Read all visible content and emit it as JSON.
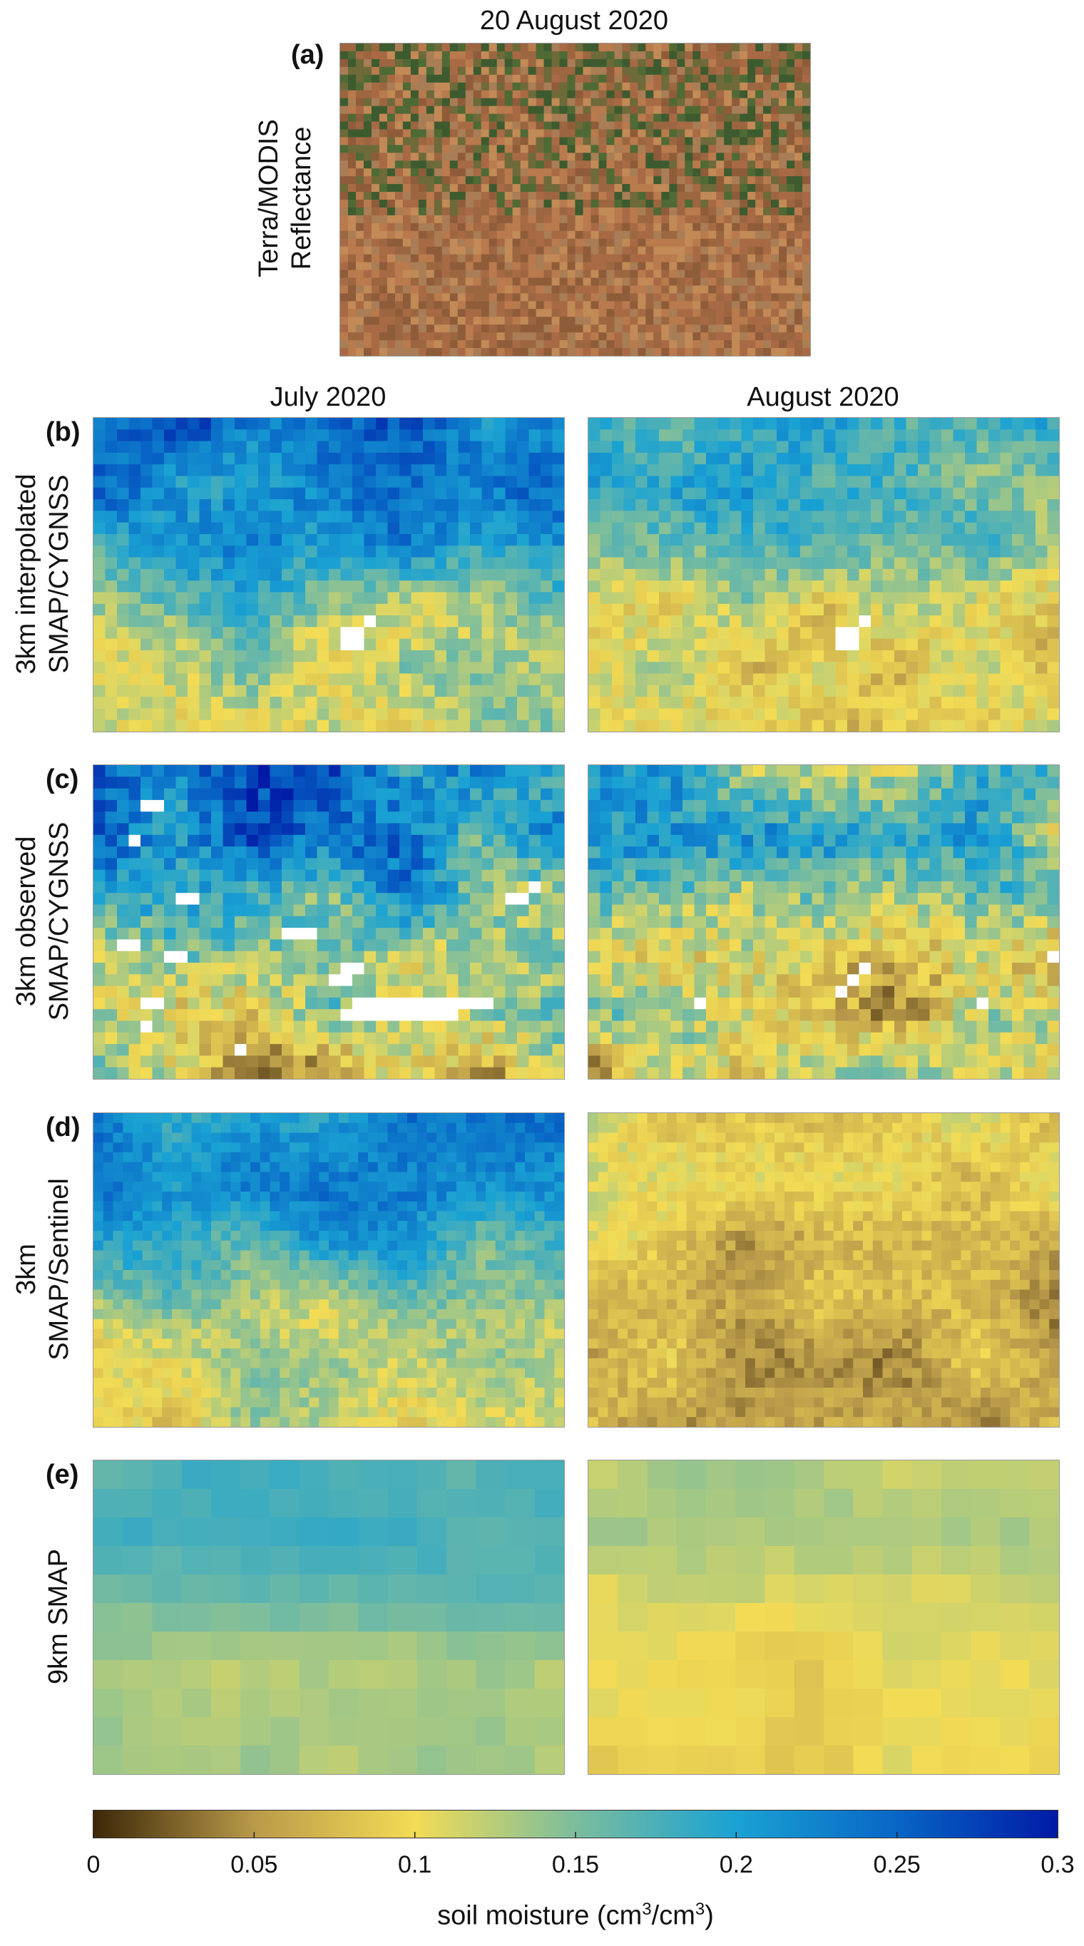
{
  "figure": {
    "header_title": "20 August 2020",
    "column_titles": [
      "July 2020",
      "August 2020"
    ]
  },
  "panel_a": {
    "letter": "(a)",
    "label_lines": [
      "Terra/MODIS",
      "Reflectance"
    ],
    "image_palette": [
      "#a86a45",
      "#b97a4d",
      "#c28a56",
      "#9c6640",
      "#6e6a3a",
      "#4f6a35",
      "#3d5b2f",
      "#a97d55",
      "#8f5c3a"
    ]
  },
  "rows": [
    {
      "letter": "(b)",
      "label_lines": [
        "3km interpolated",
        "SMAP/CYGNSS"
      ]
    },
    {
      "letter": "(c)",
      "label_lines": [
        "3km observed",
        "SMAP/CYGNSS"
      ]
    },
    {
      "letter": "(d)",
      "label_lines": [
        "3km",
        "SMAP/Sentinel"
      ]
    },
    {
      "letter": "(e)",
      "label_lines": [
        "9km SMAP"
      ]
    }
  ],
  "chart_data": {
    "type": "heatmap",
    "variable": "soil moisture",
    "colorbar": {
      "label": "soil moisture (cm",
      "label_sup1": "3",
      "label_mid": "/cm",
      "label_sup2": "3",
      "label_end": ")",
      "range": [
        0,
        0.3
      ],
      "ticks": [
        0,
        0.05,
        0.1,
        0.15,
        0.2,
        0.25,
        0.3
      ],
      "tick_labels": [
        "0",
        "0.05",
        "0.1",
        "0.15",
        "0.2",
        "0.25",
        "0.3"
      ],
      "stops": [
        {
          "v": 0.0,
          "c": "#3d2708"
        },
        {
          "v": 0.05,
          "c": "#b99a4a"
        },
        {
          "v": 0.1,
          "c": "#f3dc55"
        },
        {
          "v": 0.15,
          "c": "#7cbd9d"
        },
        {
          "v": 0.2,
          "c": "#1aa2d3"
        },
        {
          "v": 0.25,
          "c": "#0866c6"
        },
        {
          "v": 0.3,
          "c": "#001aa6"
        }
      ]
    },
    "panels": [
      {
        "row": "b",
        "month": "July 2020",
        "grid": [
          40,
          27
        ],
        "mean_top": 0.23,
        "mean_bottom": 0.125,
        "noise": 0.05,
        "missing_cells": [
          [
            21,
            18
          ],
          [
            22,
            18
          ],
          [
            21,
            19
          ],
          [
            22,
            19
          ],
          [
            23,
            17
          ]
        ]
      },
      {
        "row": "b",
        "month": "August 2020",
        "grid": [
          40,
          27
        ],
        "mean_top": 0.17,
        "mean_bottom": 0.1,
        "noise": 0.05,
        "missing_cells": [
          [
            21,
            18
          ],
          [
            22,
            18
          ],
          [
            21,
            19
          ],
          [
            22,
            19
          ],
          [
            23,
            17
          ]
        ]
      },
      {
        "row": "c",
        "month": "July 2020",
        "grid": [
          40,
          27
        ],
        "mean_top": 0.22,
        "mean_bottom": 0.1,
        "noise": 0.07,
        "missing_cells": [
          [
            4,
            3
          ],
          [
            5,
            3
          ],
          [
            3,
            6
          ],
          [
            7,
            11
          ],
          [
            8,
            11
          ],
          [
            16,
            14
          ],
          [
            17,
            14
          ],
          [
            18,
            14
          ],
          [
            2,
            15
          ],
          [
            3,
            15
          ],
          [
            6,
            16
          ],
          [
            7,
            16
          ],
          [
            21,
            17
          ],
          [
            22,
            17
          ],
          [
            20,
            18
          ],
          [
            21,
            18
          ],
          [
            4,
            20
          ],
          [
            5,
            20
          ],
          [
            22,
            20
          ],
          [
            23,
            20
          ],
          [
            24,
            20
          ],
          [
            25,
            20
          ],
          [
            26,
            20
          ],
          [
            27,
            20
          ],
          [
            28,
            20
          ],
          [
            29,
            20
          ],
          [
            30,
            20
          ],
          [
            31,
            20
          ],
          [
            32,
            20
          ],
          [
            33,
            20
          ],
          [
            21,
            21
          ],
          [
            22,
            21
          ],
          [
            23,
            21
          ],
          [
            24,
            21
          ],
          [
            25,
            21
          ],
          [
            26,
            21
          ],
          [
            27,
            21
          ],
          [
            28,
            21
          ],
          [
            29,
            21
          ],
          [
            30,
            21
          ],
          [
            4,
            22
          ],
          [
            12,
            24
          ],
          [
            35,
            11
          ],
          [
            36,
            11
          ],
          [
            37,
            10
          ]
        ]
      },
      {
        "row": "c",
        "month": "August 2020",
        "grid": [
          40,
          27
        ],
        "mean_top": 0.17,
        "mean_bottom": 0.09,
        "noise": 0.07,
        "missing_cells": [
          [
            22,
            18
          ],
          [
            21,
            19
          ],
          [
            23,
            17
          ],
          [
            33,
            20
          ],
          [
            9,
            20
          ],
          [
            39,
            16
          ]
        ]
      },
      {
        "row": "d",
        "month": "July 2020",
        "grid": [
          48,
          32
        ],
        "mean_top": 0.215,
        "mean_bottom": 0.115,
        "noise": 0.04,
        "missing_cells": []
      },
      {
        "row": "d",
        "month": "August 2020",
        "grid": [
          48,
          32
        ],
        "mean_top": 0.085,
        "mean_bottom": 0.065,
        "noise": 0.035,
        "missing_cells": []
      },
      {
        "row": "e",
        "month": "July 2020",
        "grid": [
          16,
          11
        ],
        "mean_top": 0.175,
        "mean_bottom": 0.13,
        "noise": 0.012,
        "missing_cells": []
      },
      {
        "row": "e",
        "month": "August 2020",
        "grid": [
          16,
          11
        ],
        "mean_top": 0.125,
        "mean_bottom": 0.095,
        "noise": 0.012,
        "missing_cells": []
      }
    ]
  }
}
